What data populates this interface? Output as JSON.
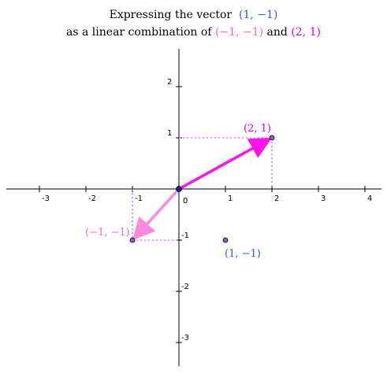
{
  "title": {
    "line1_prefix": "Expressing the vector",
    "line1_vector": "(1, −1)",
    "line2_prefix": "as a linear combination of",
    "line2_vec_a": "(−1, −1)",
    "line2_and": "and",
    "line2_vec_b": "(2, 1)"
  },
  "axes": {
    "x_ticks": [
      "-3",
      "-2",
      "-1",
      "0",
      "1",
      "2",
      "3",
      "4"
    ],
    "x_tick_values": [
      -3,
      -2,
      -1,
      0,
      1,
      2,
      3,
      4
    ],
    "y_ticks": [
      "2",
      "1",
      "-1",
      "-2",
      "-3"
    ],
    "y_tick_values": [
      2,
      1,
      -1,
      -2,
      -3
    ]
  },
  "points": {
    "target": {
      "label": "(1, −1)",
      "x": 1,
      "y": -1,
      "color": "#2a5bff"
    },
    "vec_a": {
      "label": "(−1, −1)",
      "x": -1,
      "y": -1,
      "color": "#ff66cc"
    },
    "vec_b": {
      "label": "(2, 1)",
      "x": 2,
      "y": 1,
      "color": "#e600e6"
    }
  },
  "colors": {
    "arrow_a": "#ff88dd",
    "arrow_b": "#ff11ee",
    "projection": "#ff33ff",
    "projection_blue": "#5555ff",
    "point_fill": "#9955cc"
  }
}
